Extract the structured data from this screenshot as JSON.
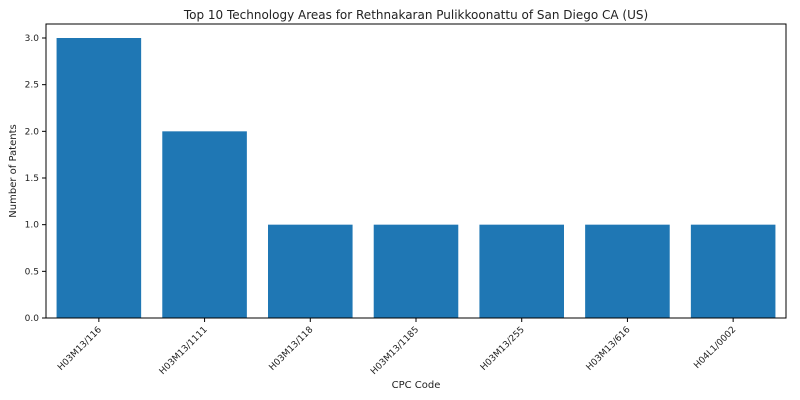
{
  "chart_data": {
    "type": "bar",
    "title": "Top 10 Technology Areas for Rethnakaran Pulikkoonattu of San Diego CA (US)",
    "xlabel": "CPC Code",
    "ylabel": "Number of Patents",
    "categories": [
      "H03M13/116",
      "H03M13/1111",
      "H03M13/118",
      "H03M13/1185",
      "H03M13/255",
      "H03M13/616",
      "H04L1/0002"
    ],
    "values": [
      3,
      2,
      1,
      1,
      1,
      1,
      1
    ],
    "ylim": [
      0,
      3.15
    ],
    "yticks": [
      "0.0",
      "0.5",
      "1.0",
      "1.5",
      "2.0",
      "2.5",
      "3.0"
    ],
    "grid": false,
    "bar_color": "#1f77b4"
  }
}
